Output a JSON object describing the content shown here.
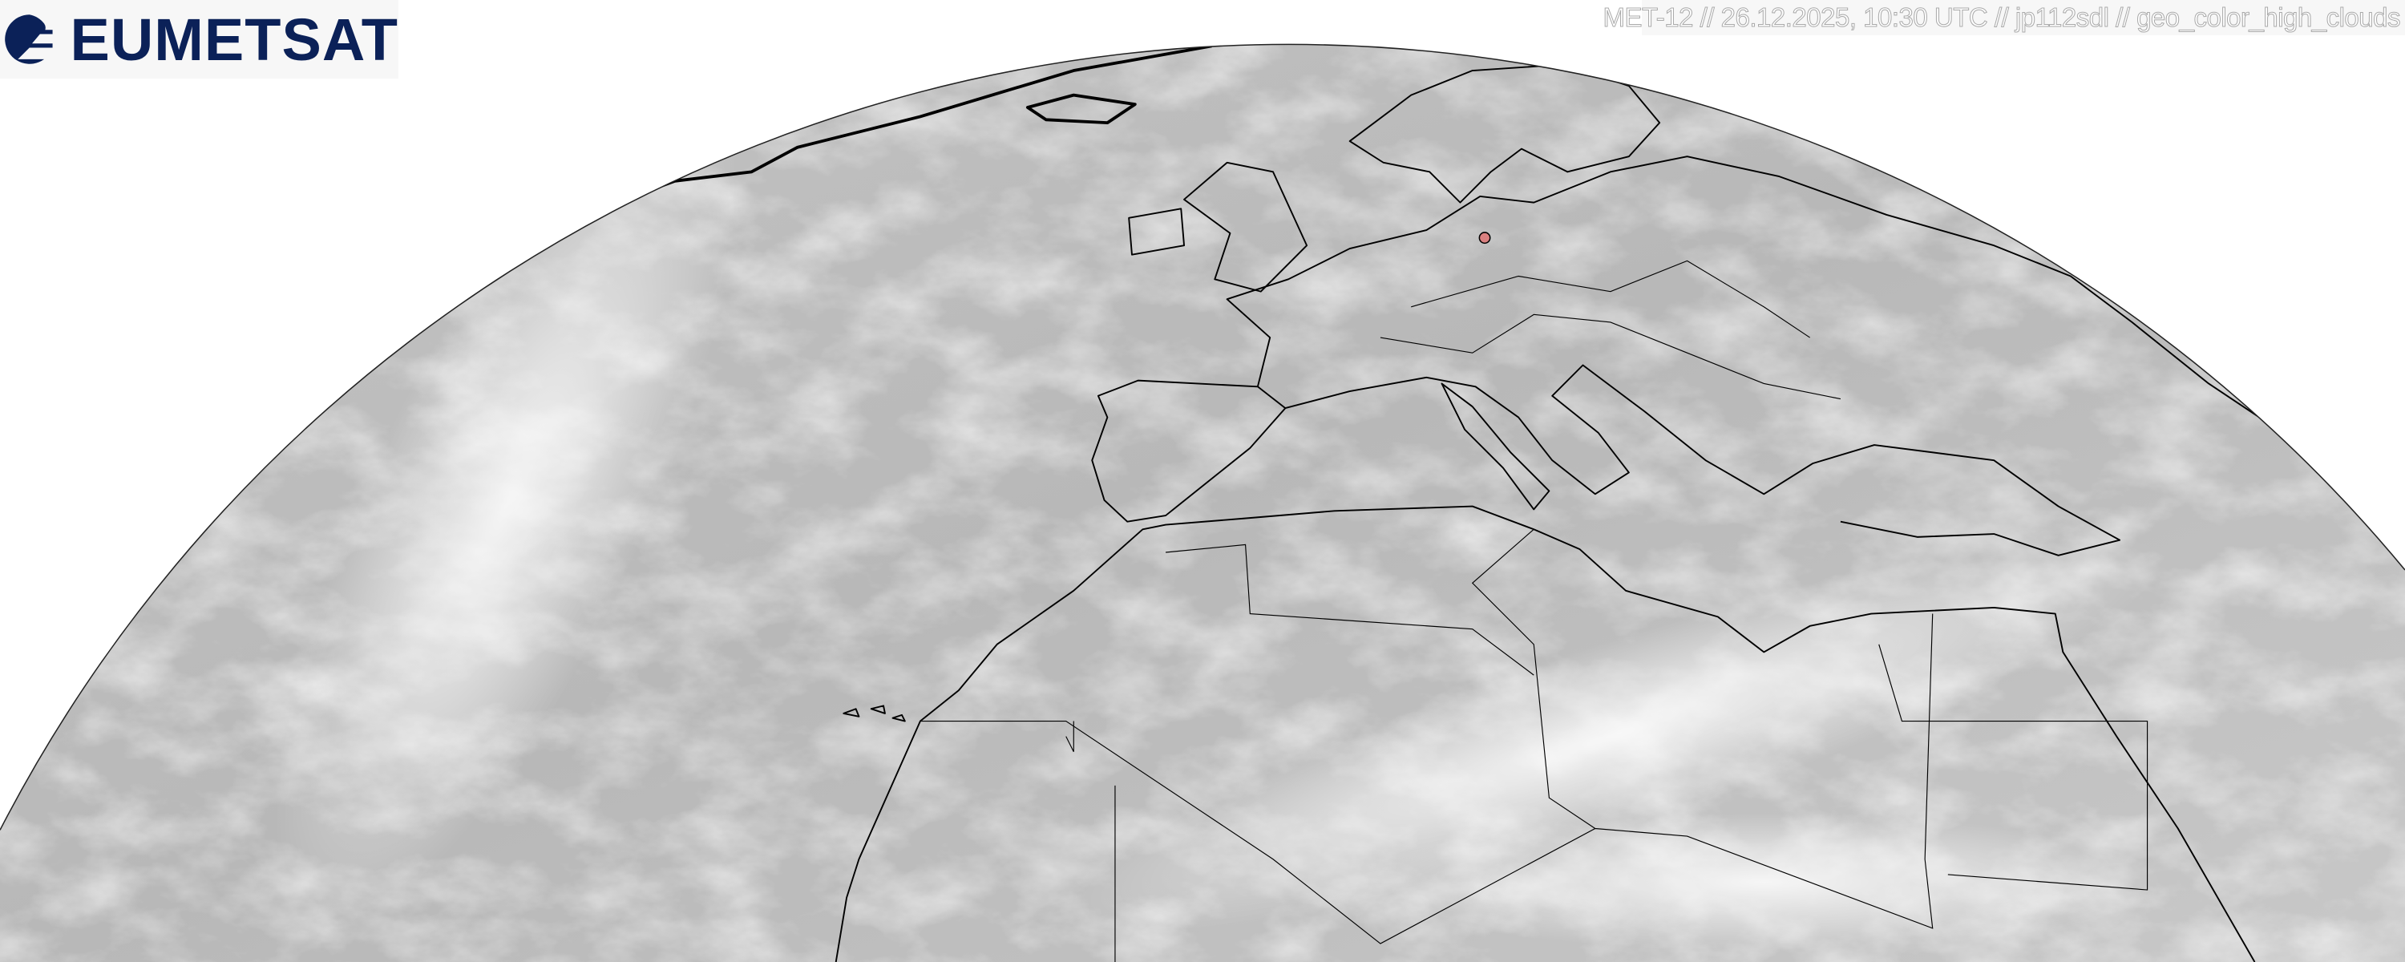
{
  "logo": {
    "text": "EUMETSAT",
    "color": "#0b2158"
  },
  "header": {
    "info": "MET-12 // 26.12.2025, 10:30 UTC // jp112sdl // geo_color_high_clouds"
  },
  "map": {
    "marker_color": "#d98080",
    "coast_color": "#000000",
    "earth_base": "#b9b9b9"
  }
}
